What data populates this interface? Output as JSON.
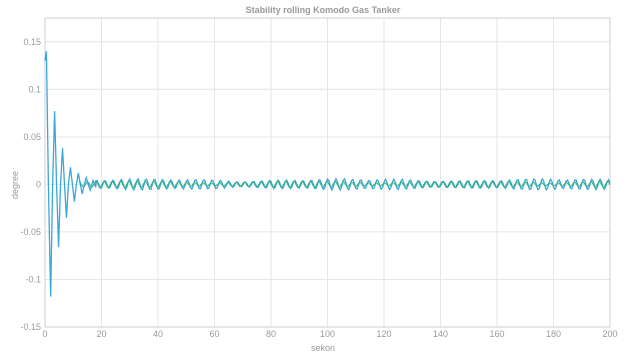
{
  "chart_data": {
    "type": "line",
    "title": "Stability rolling Komodo Gas Tanker",
    "xlabel": "sekon",
    "ylabel": "degree",
    "xlim": [
      0,
      200
    ],
    "ylim": [
      -0.15,
      0.175
    ],
    "grid": true,
    "xticks": [
      0,
      20,
      40,
      60,
      80,
      100,
      120,
      140,
      160,
      180,
      200
    ],
    "yticks": [
      -0.15,
      -0.1,
      -0.05,
      0,
      0.05,
      0.1,
      0.15
    ],
    "ytick_labels": [
      "-0.15",
      "-0.1",
      "-0.05",
      "0",
      "0.05",
      "0.1",
      "0.15"
    ],
    "series": [
      {
        "color": "#3aa6d8",
        "description_points": {
          "x": [
            0,
            0.5,
            1.2,
            2.0,
            2.7,
            3.4,
            4.1,
            4.8,
            5.5,
            6.2,
            6.9,
            7.6,
            8.3,
            9.0,
            9.7,
            10.4,
            11.1,
            11.8,
            12.5,
            13.2,
            13.9,
            14.6,
            15.3,
            16.0,
            17.0,
            18.0
          ],
          "y": [
            0.13,
            0.14,
            0.0,
            -0.118,
            0.0,
            0.077,
            0.0,
            -0.066,
            0.0,
            0.038,
            0.0,
            -0.035,
            0.0,
            0.018,
            0.0,
            -0.018,
            0.0,
            0.012,
            0.0,
            -0.01,
            0.0,
            0.007,
            0.0,
            -0.006,
            0.004,
            -0.003
          ]
        }
      },
      {
        "color": "#2bb07a",
        "description_points": {
          "x": [
            18,
            200
          ],
          "y": [
            0,
            0
          ]
        }
      }
    ]
  }
}
